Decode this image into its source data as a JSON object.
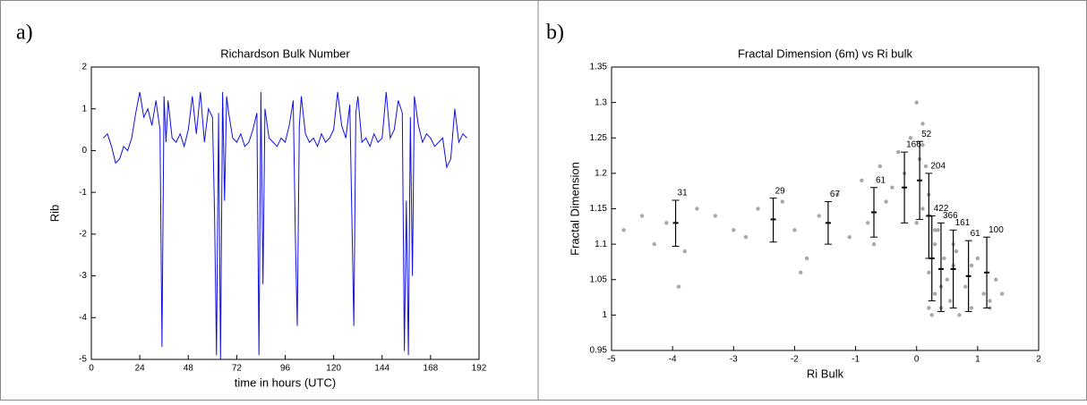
{
  "chart_data": [
    {
      "type": "line",
      "panel_label": "a)",
      "title": "Richardson Bulk Number",
      "xlabel": "time in hours (UTC)",
      "ylabel": "Rib",
      "xlim": [
        0,
        192
      ],
      "xticks": [
        0,
        24,
        48,
        72,
        96,
        120,
        144,
        168,
        192
      ],
      "ylim": [
        -5,
        2
      ],
      "yticks": [
        -5,
        -4,
        -3,
        -2,
        -1,
        0,
        1,
        2
      ],
      "series": [
        {
          "color": "#1010e0",
          "x": [
            6,
            8,
            10,
            12,
            14,
            16,
            18,
            20,
            22,
            24,
            26,
            28,
            30,
            32,
            34,
            35,
            36,
            37,
            38,
            40,
            42,
            44,
            46,
            48,
            50,
            52,
            54,
            56,
            58,
            60,
            61,
            62,
            63,
            64,
            65,
            66,
            67,
            68,
            70,
            72,
            74,
            76,
            78,
            80,
            82,
            83,
            84,
            85,
            86,
            88,
            90,
            92,
            94,
            96,
            98,
            100,
            101,
            102,
            103,
            104,
            106,
            108,
            110,
            112,
            114,
            116,
            118,
            120,
            122,
            124,
            126,
            128,
            129,
            130,
            131,
            132,
            134,
            136,
            138,
            140,
            142,
            144,
            146,
            148,
            150,
            152,
            154,
            155,
            156,
            157,
            158,
            159,
            160,
            162,
            164,
            166,
            168,
            170,
            172,
            174,
            176,
            178,
            180,
            182,
            184,
            186
          ],
          "values": [
            0.3,
            0.4,
            0.1,
            -0.3,
            -0.2,
            0.1,
            0.0,
            0.3,
            0.9,
            1.4,
            0.8,
            1.0,
            0.6,
            1.2,
            0.5,
            -4.7,
            1.3,
            0.2,
            1.2,
            0.3,
            0.2,
            0.4,
            0.1,
            0.5,
            1.3,
            0.4,
            1.4,
            0.2,
            1.0,
            0.8,
            -1.5,
            -4.9,
            0.9,
            -5.0,
            1.4,
            -1.2,
            1.3,
            0.9,
            0.3,
            0.2,
            0.4,
            0.1,
            0.2,
            0.5,
            0.9,
            -4.9,
            1.4,
            -3.2,
            1.0,
            0.3,
            0.2,
            0.1,
            0.3,
            0.2,
            0.6,
            1.2,
            -2.0,
            -4.2,
            0.6,
            1.3,
            0.4,
            0.2,
            0.3,
            0.1,
            0.4,
            0.2,
            0.3,
            0.5,
            1.4,
            0.6,
            0.3,
            1.1,
            -1.5,
            -4.2,
            0.9,
            1.3,
            0.2,
            0.3,
            0.1,
            0.4,
            0.2,
            0.3,
            1.4,
            0.3,
            0.5,
            1.2,
            0.9,
            -4.8,
            -1.2,
            -4.9,
            0.8,
            -3.0,
            1.3,
            0.6,
            0.2,
            0.4,
            0.3,
            0.1,
            0.2,
            0.3,
            -0.4,
            -0.2,
            1.0,
            0.2,
            0.4,
            0.3
          ]
        }
      ]
    },
    {
      "type": "scatter",
      "panel_label": "b)",
      "title": "Fractal Dimension (6m) vs Ri bulk",
      "xlabel": "Ri Bulk",
      "ylabel": "Fractal Dimension",
      "xlim": [
        -5,
        2
      ],
      "xticks": [
        -5,
        -4,
        -3,
        -2,
        -1,
        0,
        1,
        2
      ],
      "ylim": [
        0.95,
        1.35
      ],
      "yticks": [
        0.95,
        1,
        1.05,
        1.1,
        1.15,
        1.2,
        1.25,
        1.3,
        1.35
      ],
      "series": [
        {
          "color": "#a8a8a8",
          "x": [
            -4.8,
            -4.5,
            -4.3,
            -4.1,
            -3.8,
            -3.6,
            -3.3,
            -3.0,
            -2.8,
            -2.6,
            -2.2,
            -2.0,
            -1.8,
            -1.6,
            -1.3,
            -1.1,
            -0.9,
            -0.8,
            -0.6,
            -0.5,
            -0.4,
            -0.3,
            -0.2,
            -0.1,
            0.0,
            0.05,
            0.1,
            0.1,
            0.15,
            0.2,
            0.2,
            0.25,
            0.3,
            0.3,
            0.35,
            0.4,
            0.45,
            0.5,
            0.55,
            0.6,
            0.65,
            0.7,
            0.8,
            0.9,
            1.0,
            1.1,
            1.2,
            1.3,
            1.4,
            -3.9,
            -1.9,
            -0.7,
            0.0,
            0.2,
            0.4,
            0.6,
            0.9,
            1.2,
            0.1,
            0.3
          ],
          "values": [
            1.12,
            1.14,
            1.1,
            1.13,
            1.09,
            1.15,
            1.14,
            1.12,
            1.11,
            1.15,
            1.16,
            1.12,
            1.08,
            1.14,
            1.17,
            1.11,
            1.19,
            1.13,
            1.21,
            1.16,
            1.18,
            1.23,
            1.2,
            1.25,
            1.3,
            1.22,
            1.27,
            1.15,
            1.21,
            1.06,
            1.17,
            1.0,
            1.03,
            1.1,
            1.12,
            1.01,
            1.08,
            1.05,
            1.02,
            1.07,
            1.09,
            1.0,
            1.04,
            1.01,
            1.08,
            1.03,
            1.02,
            1.05,
            1.03,
            1.04,
            1.06,
            1.1,
            1.13,
            1.01,
            1.04,
            1.1,
            1.07,
            1.01,
            1.24,
            1.12
          ]
        }
      ],
      "error_bars": {
        "color": "#000000",
        "x": [
          -3.95,
          -2.35,
          -1.45,
          -0.7,
          -0.2,
          0.05,
          0.2,
          0.25,
          0.4,
          0.6,
          0.85,
          1.15
        ],
        "values": [
          1.13,
          1.135,
          1.13,
          1.145,
          1.18,
          1.19,
          1.14,
          1.08,
          1.065,
          1.065,
          1.055,
          1.06
        ],
        "low": [
          1.097,
          1.103,
          1.1,
          1.11,
          1.13,
          1.135,
          1.08,
          1.02,
          1.005,
          1.01,
          1.005,
          1.01
        ],
        "high": [
          1.162,
          1.165,
          1.16,
          1.18,
          1.23,
          1.245,
          1.2,
          1.14,
          1.13,
          1.12,
          1.105,
          1.11
        ],
        "counts": [
          31,
          29,
          67,
          61,
          166,
          52,
          204,
          422,
          366,
          161,
          61,
          100
        ]
      }
    }
  ]
}
